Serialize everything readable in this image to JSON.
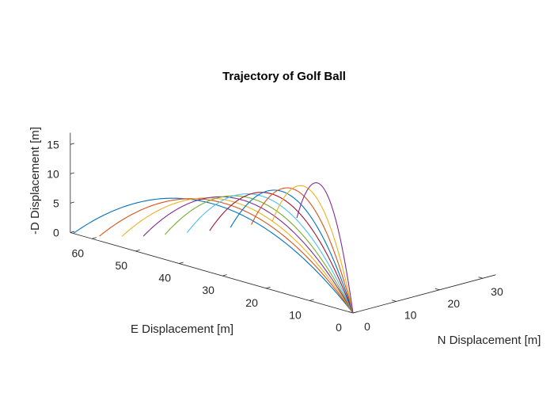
{
  "chart_data": {
    "type": "line",
    "projection": "3d",
    "title": "Trajectory of Golf Ball",
    "xlabel": "N Displacement [m]",
    "ylabel": "E Displacement [m]",
    "zlabel": "-D Displacement [m]",
    "xlim": [
      0,
      33
    ],
    "ylim": [
      0,
      65
    ],
    "zlim": [
      0,
      17
    ],
    "xticks": [
      0,
      10,
      20,
      30
    ],
    "yticks": [
      0,
      10,
      20,
      30,
      40,
      50,
      60
    ],
    "zticks": [
      0,
      5,
      10,
      15
    ],
    "grid": false,
    "legend": "none",
    "series": [
      {
        "color": "#0072BD",
        "end_east": 64.3,
        "end_north": 0.0,
        "end_height": 0.0,
        "apex_height": 11.8
      },
      {
        "color": "#D95319",
        "end_east": 59.5,
        "end_north": 1.2,
        "end_height": 0.3,
        "apex_height": 12.2
      },
      {
        "color": "#EDB120",
        "end_east": 55.7,
        "end_north": 2.6,
        "end_height": 0.8,
        "apex_height": 12.6
      },
      {
        "color": "#7E2F8E",
        "end_east": 52.4,
        "end_north": 4.2,
        "end_height": 1.2,
        "apex_height": 13.0
      },
      {
        "color": "#77AC30",
        "end_east": 49.2,
        "end_north": 6.0,
        "end_height": 1.8,
        "apex_height": 13.3
      },
      {
        "color": "#4DBEEE",
        "end_east": 46.3,
        "end_north": 8.2,
        "end_height": 2.3,
        "apex_height": 13.7
      },
      {
        "color": "#A2142F",
        "end_east": 43.4,
        "end_north": 10.5,
        "end_height": 2.8,
        "apex_height": 14.0
      },
      {
        "color": "#0072BD",
        "end_east": 40.7,
        "end_north": 12.6,
        "end_height": 3.5,
        "apex_height": 14.4
      },
      {
        "color": "#D95319",
        "end_east": 38.1,
        "end_north": 14.8,
        "end_height": 4.1,
        "apex_height": 14.8
      },
      {
        "color": "#EDB120",
        "end_east": 35.5,
        "end_north": 17.0,
        "end_height": 4.7,
        "apex_height": 15.2
      },
      {
        "color": "#7E2F8E",
        "end_east": 32.4,
        "end_north": 19.6,
        "end_height": 5.5,
        "apex_height": 15.7
      }
    ]
  }
}
